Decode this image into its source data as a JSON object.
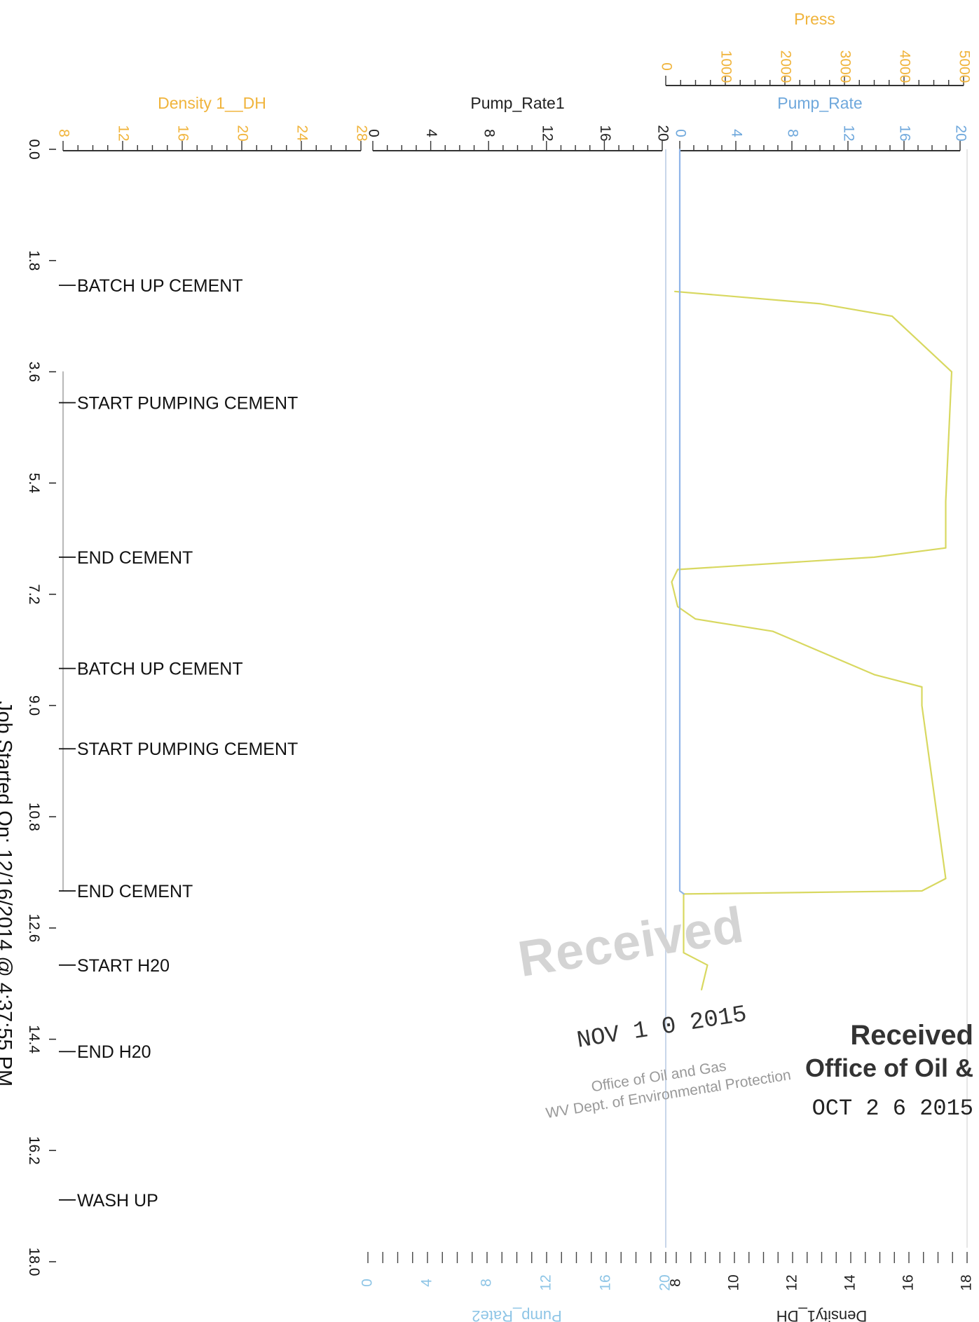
{
  "chart_data": {
    "type": "line",
    "orientation": "rotated-90",
    "time_axis": {
      "ticks": [
        "0.0",
        "1.8",
        "3.6",
        "5.4",
        "7.2",
        "9.0",
        "10.8",
        "12.6",
        "14.4",
        "16.2",
        "18.0"
      ],
      "range": [
        0,
        18
      ]
    },
    "axes_top": [
      {
        "key": "density",
        "label": "Density 1__DH",
        "ticks": [
          "8",
          "12",
          "16",
          "20",
          "24",
          "28"
        ],
        "range": [
          8,
          28
        ],
        "color": "#f0b43c"
      },
      {
        "key": "pump1",
        "label": "Pump_Rate1",
        "ticks": [
          "0",
          "4",
          "8",
          "12",
          "16",
          "20"
        ],
        "range": [
          0,
          20
        ],
        "color": "#222222"
      },
      {
        "key": "press",
        "label": "Press",
        "ticks": [
          "0",
          "1000",
          "2000",
          "3000",
          "4000",
          "5000"
        ],
        "range": [
          0,
          5000
        ],
        "color": "#f0b43c"
      },
      {
        "key": "pump",
        "label": "Pump_Rate",
        "ticks": [
          "0",
          "4",
          "8",
          "12",
          "16",
          "20"
        ],
        "range": [
          0,
          20
        ],
        "color": "#6fa8dc"
      }
    ],
    "axes_bottom": [
      {
        "key": "pump2",
        "label": "Pump_Rate2",
        "ticks": [
          "0",
          "4",
          "8",
          "12",
          "16",
          "20"
        ],
        "range": [
          0,
          20
        ],
        "color": "#8ec5e6"
      },
      {
        "key": "density1",
        "label": "Density1_DH",
        "ticks": [
          "8",
          "10",
          "12",
          "14",
          "16",
          "18"
        ],
        "range": [
          8,
          18
        ],
        "color": "#222222"
      }
    ],
    "events": [
      {
        "t": 2.2,
        "label": "BATCH UP CEMENT"
      },
      {
        "t": 4.1,
        "label": "START PUMPING CEMENT"
      },
      {
        "t": 6.6,
        "label": "END CEMENT"
      },
      {
        "t": 8.4,
        "label": "BATCH UP CEMENT"
      },
      {
        "t": 9.7,
        "label": "START PUMPING CEMENT"
      },
      {
        "t": 12.0,
        "label": "END CEMENT"
      },
      {
        "t": 13.2,
        "label": "START H20"
      },
      {
        "t": 14.6,
        "label": "END H20"
      },
      {
        "t": 17.0,
        "label": "WASH UP"
      }
    ],
    "series": [
      {
        "axis": "press",
        "color": "#d8d860",
        "points": [
          [
            2.3,
            150
          ],
          [
            2.5,
            2600
          ],
          [
            2.7,
            3800
          ],
          [
            3.6,
            4800
          ],
          [
            5.7,
            4700
          ],
          [
            6.45,
            4700
          ],
          [
            6.6,
            3500
          ],
          [
            6.8,
            200
          ],
          [
            7.0,
            100
          ],
          [
            7.4,
            200
          ],
          [
            7.6,
            500
          ],
          [
            7.8,
            1800
          ],
          [
            8.5,
            3500
          ],
          [
            8.7,
            4300
          ],
          [
            9.0,
            4300
          ],
          [
            11.8,
            4700
          ],
          [
            12.0,
            4300
          ],
          [
            12.05,
            300
          ],
          [
            12.5,
            300
          ],
          [
            13.0,
            300
          ],
          [
            13.2,
            700
          ],
          [
            13.6,
            600
          ]
        ]
      },
      {
        "axis": "density",
        "color": "#bbbbbb",
        "points": [
          [
            3.6,
            8
          ],
          [
            12.0,
            8
          ]
        ]
      },
      {
        "axis": "pump",
        "color": "#8fb4e8",
        "points": [
          [
            0.0,
            0
          ],
          [
            12.0,
            0
          ],
          [
            12.05,
            0.3
          ]
        ]
      }
    ],
    "job_started": "Job Started On: 12/16/2014 @ 4:37:55 PM"
  },
  "stamps": {
    "received1": {
      "title": "Received",
      "date": "NOV 1 0 2015",
      "line1": "Office of Oil and Gas",
      "line2": "WV Dept. of Environmental Protection"
    },
    "received2": {
      "title": "Received",
      "line1": "Office of Oil &",
      "date": "OCT 2 6 2015"
    }
  }
}
